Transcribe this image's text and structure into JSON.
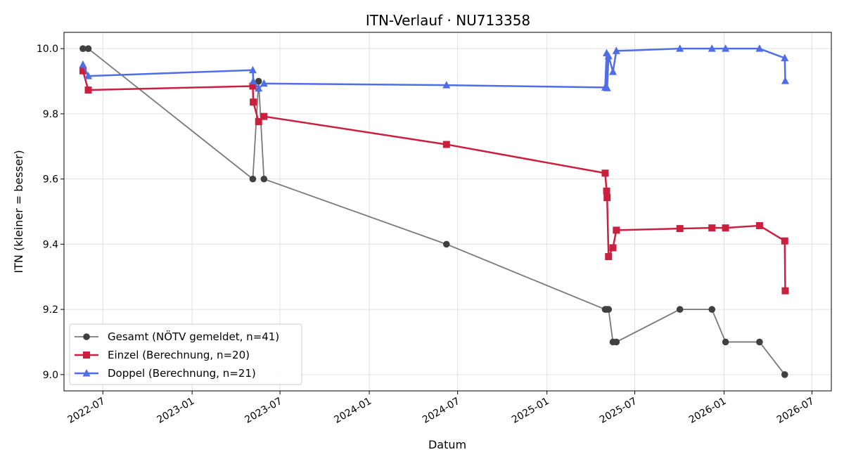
{
  "chart_data": {
    "type": "line",
    "title": "ITN-Verlauf · NU713358",
    "xlabel": "Datum",
    "ylabel": "ITN  (kleiner = besser)",
    "ylim": [
      8.95,
      10.05
    ],
    "xlim": [
      "2022-04-12",
      "2026-08-10"
    ],
    "grid": true,
    "legend_position": "lower-left",
    "x_ticks": [
      "2022-07",
      "2023-01",
      "2023-07",
      "2024-01",
      "2024-07",
      "2025-01",
      "2025-07",
      "2026-01",
      "2026-07"
    ],
    "y_ticks": [
      "9.0",
      "9.2",
      "9.4",
      "9.6",
      "9.8",
      "10.0"
    ],
    "series": [
      {
        "name": "Gesamt (NÖTV gemeldet, n=41)",
        "color": "#404040",
        "marker": "circle",
        "points": [
          [
            "2022-05-21",
            10.0
          ],
          [
            "2022-06-01",
            10.0
          ],
          [
            "2023-05-06",
            9.6
          ],
          [
            "2023-05-18",
            9.9
          ],
          [
            "2023-05-29",
            9.6
          ],
          [
            "2024-06-08",
            9.4
          ],
          [
            "2025-05-01",
            9.2
          ],
          [
            "2025-05-04",
            9.2
          ],
          [
            "2025-05-08",
            9.2
          ],
          [
            "2025-05-17",
            9.1
          ],
          [
            "2025-05-24",
            9.1
          ],
          [
            "2025-10-02",
            9.2
          ],
          [
            "2025-12-07",
            9.2
          ],
          [
            "2026-01-04",
            9.1
          ],
          [
            "2026-03-15",
            9.1
          ],
          [
            "2026-05-06",
            9.0
          ]
        ]
      },
      {
        "name": "Einzel (Berechnung, n=20)",
        "color": "#c8203e",
        "marker": "square",
        "points": [
          [
            "2022-05-21",
            9.932
          ],
          [
            "2022-06-01",
            9.873
          ],
          [
            "2023-05-06",
            9.885
          ],
          [
            "2023-05-07",
            9.836
          ],
          [
            "2023-05-18",
            9.776
          ],
          [
            "2023-05-29",
            9.792
          ],
          [
            "2024-06-08",
            9.706
          ],
          [
            "2025-05-01",
            9.618
          ],
          [
            "2025-05-04",
            9.563
          ],
          [
            "2025-05-05",
            9.543
          ],
          [
            "2025-05-08",
            9.362
          ],
          [
            "2025-05-17",
            9.389
          ],
          [
            "2025-05-24",
            9.443
          ],
          [
            "2025-10-02",
            9.448
          ],
          [
            "2025-12-07",
            9.45
          ],
          [
            "2026-01-04",
            9.45
          ],
          [
            "2026-03-15",
            9.457
          ],
          [
            "2026-05-06",
            9.41
          ],
          [
            "2026-05-07",
            9.257
          ]
        ]
      },
      {
        "name": "Doppel (Berechnung, n=21)",
        "color": "#4f6de6",
        "marker": "triangle",
        "points": [
          [
            "2022-05-21",
            9.951
          ],
          [
            "2022-06-01",
            9.916
          ],
          [
            "2023-05-06",
            9.934
          ],
          [
            "2023-05-07",
            9.9
          ],
          [
            "2023-05-18",
            9.878
          ],
          [
            "2023-05-29",
            9.893
          ],
          [
            "2024-06-08",
            9.888
          ],
          [
            "2025-05-01",
            9.881
          ],
          [
            "2025-05-04",
            9.986
          ],
          [
            "2025-05-05",
            9.879
          ],
          [
            "2025-05-08",
            9.977
          ],
          [
            "2025-05-17",
            9.929
          ],
          [
            "2025-05-24",
            9.993
          ],
          [
            "2025-10-02",
            10.0
          ],
          [
            "2025-12-07",
            10.0
          ],
          [
            "2026-01-04",
            10.0
          ],
          [
            "2026-03-15",
            10.0
          ],
          [
            "2026-05-06",
            9.971
          ],
          [
            "2026-05-07",
            9.901
          ]
        ]
      }
    ]
  }
}
